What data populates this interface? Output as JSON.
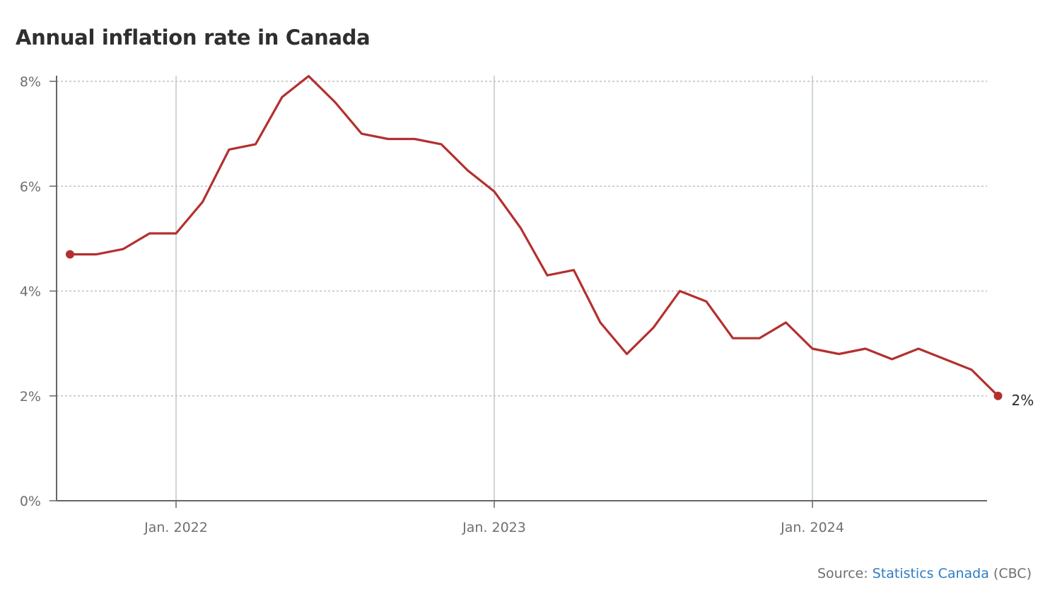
{
  "title": "Annual inflation rate in Canada",
  "source": {
    "prefix": "Source: ",
    "link_text": "Statistics Canada",
    "suffix": " (CBC)"
  },
  "colors": {
    "line": "#b3302f",
    "axis": "#666666",
    "gridline": "#b5b5b5",
    "year_line": "#b9c4c6",
    "tick_text": "#6f6f6f",
    "link": "#2f7dc1"
  },
  "chart_data": {
    "type": "line",
    "title": "Annual inflation rate in Canada",
    "xlabel": "",
    "ylabel": "",
    "ylim": [
      0,
      8
    ],
    "xlim": [
      "2021-08",
      "2024-08"
    ],
    "y_ticks": [
      {
        "value": 0,
        "label": "0%"
      },
      {
        "value": 2,
        "label": "2%"
      },
      {
        "value": 4,
        "label": "4%"
      },
      {
        "value": 6,
        "label": "6%"
      },
      {
        "value": 8,
        "label": "8%"
      }
    ],
    "x_ticks": [
      {
        "value": "2022-01",
        "label": "Jan. 2022"
      },
      {
        "value": "2023-01",
        "label": "Jan. 2023"
      },
      {
        "value": "2024-01",
        "label": "Jan. 2024"
      }
    ],
    "grid": {
      "horizontal": "dotted",
      "vertical_at_year_ticks": true
    },
    "series": [
      {
        "points": [
          {
            "x": "2021-09",
            "y": 4.7
          },
          {
            "x": "2021-10",
            "y": 4.7
          },
          {
            "x": "2021-11",
            "y": 4.8
          },
          {
            "x": "2021-12",
            "y": 5.1
          },
          {
            "x": "2022-01",
            "y": 5.1
          },
          {
            "x": "2022-02",
            "y": 5.7
          },
          {
            "x": "2022-03",
            "y": 6.7
          },
          {
            "x": "2022-04",
            "y": 6.8
          },
          {
            "x": "2022-05",
            "y": 7.7
          },
          {
            "x": "2022-06",
            "y": 8.1
          },
          {
            "x": "2022-07",
            "y": 7.6
          },
          {
            "x": "2022-08",
            "y": 7.0
          },
          {
            "x": "2022-09",
            "y": 6.9
          },
          {
            "x": "2022-10",
            "y": 6.9
          },
          {
            "x": "2022-11",
            "y": 6.8
          },
          {
            "x": "2022-12",
            "y": 6.3
          },
          {
            "x": "2023-01",
            "y": 5.9
          },
          {
            "x": "2023-02",
            "y": 5.2
          },
          {
            "x": "2023-03",
            "y": 4.3
          },
          {
            "x": "2023-04",
            "y": 4.4
          },
          {
            "x": "2023-05",
            "y": 3.4
          },
          {
            "x": "2023-06",
            "y": 2.8
          },
          {
            "x": "2023-07",
            "y": 3.3
          },
          {
            "x": "2023-08",
            "y": 4.0
          },
          {
            "x": "2023-09",
            "y": 3.8
          },
          {
            "x": "2023-10",
            "y": 3.1
          },
          {
            "x": "2023-11",
            "y": 3.1
          },
          {
            "x": "2023-12",
            "y": 3.4
          },
          {
            "x": "2024-01",
            "y": 2.9
          },
          {
            "x": "2024-02",
            "y": 2.8
          },
          {
            "x": "2024-03",
            "y": 2.9
          },
          {
            "x": "2024-04",
            "y": 2.7
          },
          {
            "x": "2024-05",
            "y": 2.9
          },
          {
            "x": "2024-06",
            "y": 2.7
          },
          {
            "x": "2024-07",
            "y": 2.5
          },
          {
            "x": "2024-08",
            "y": 2.0
          }
        ],
        "end_label": "2%"
      }
    ]
  }
}
